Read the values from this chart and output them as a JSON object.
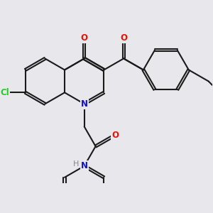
{
  "bg_color": "#e8e8ec",
  "bond_color": "#1a1a1a",
  "bond_lw": 1.5,
  "atom_colors": {
    "O": "#ee1100",
    "N": "#1111cc",
    "Cl": "#22cc22",
    "F": "#cc44bb",
    "H": "#888888"
  },
  "font_size": 8.5
}
